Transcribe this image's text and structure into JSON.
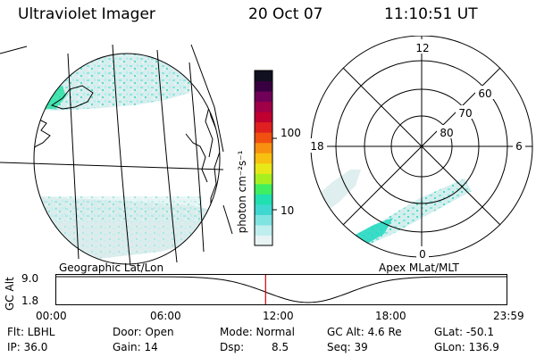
{
  "header": {
    "instrument": "Ultraviolet Imager",
    "date": "20 Oct 07",
    "time": "11:10:51 UT"
  },
  "colorbar": {
    "unit_label": "photon cm⁻²s⁻¹",
    "ticks": [
      {
        "label": "100",
        "value": 100
      },
      {
        "label": "10",
        "value": 10
      }
    ],
    "colors": [
      "#e8f4f4",
      "#bfeeee",
      "#7fe3e0",
      "#3fd8d0",
      "#20e0b0",
      "#40ef60",
      "#a8ef20",
      "#e8e818",
      "#f8c010",
      "#f89010",
      "#f05010",
      "#e02020",
      "#c00030",
      "#a00048",
      "#700058",
      "#380040",
      "#101020"
    ]
  },
  "panels": {
    "left_caption": "Geographic Lat/Lon",
    "right_caption": "Apex MLat/MLT"
  },
  "polar": {
    "mlt_labels": {
      "top": "12",
      "left": "18",
      "right": "6",
      "bottom": "0"
    },
    "lat_labels": [
      "60",
      "70",
      "80"
    ]
  },
  "timeline": {
    "ylabel": "GC Alt",
    "yticks": [
      "9.0",
      "1.8"
    ],
    "xticks": [
      "00:00",
      "06:00",
      "12:00",
      "18:00",
      "23:59"
    ],
    "current_time_fraction": 0.466,
    "current_marker_color": "#cc0000"
  },
  "footer": {
    "flt": "Flt: LBHL",
    "door": "Door: Open",
    "mode": "Mode: Normal",
    "gc_alt": "GC Alt: 4.6 Re",
    "glat": "GLat: -50.1",
    "ip": "IP: 36.0",
    "gain": "Gain: 14",
    "dsp_label": "Dsp:",
    "dsp_value": "8.5",
    "seq": "Seq: 39",
    "glon": "GLon: 136.9"
  }
}
